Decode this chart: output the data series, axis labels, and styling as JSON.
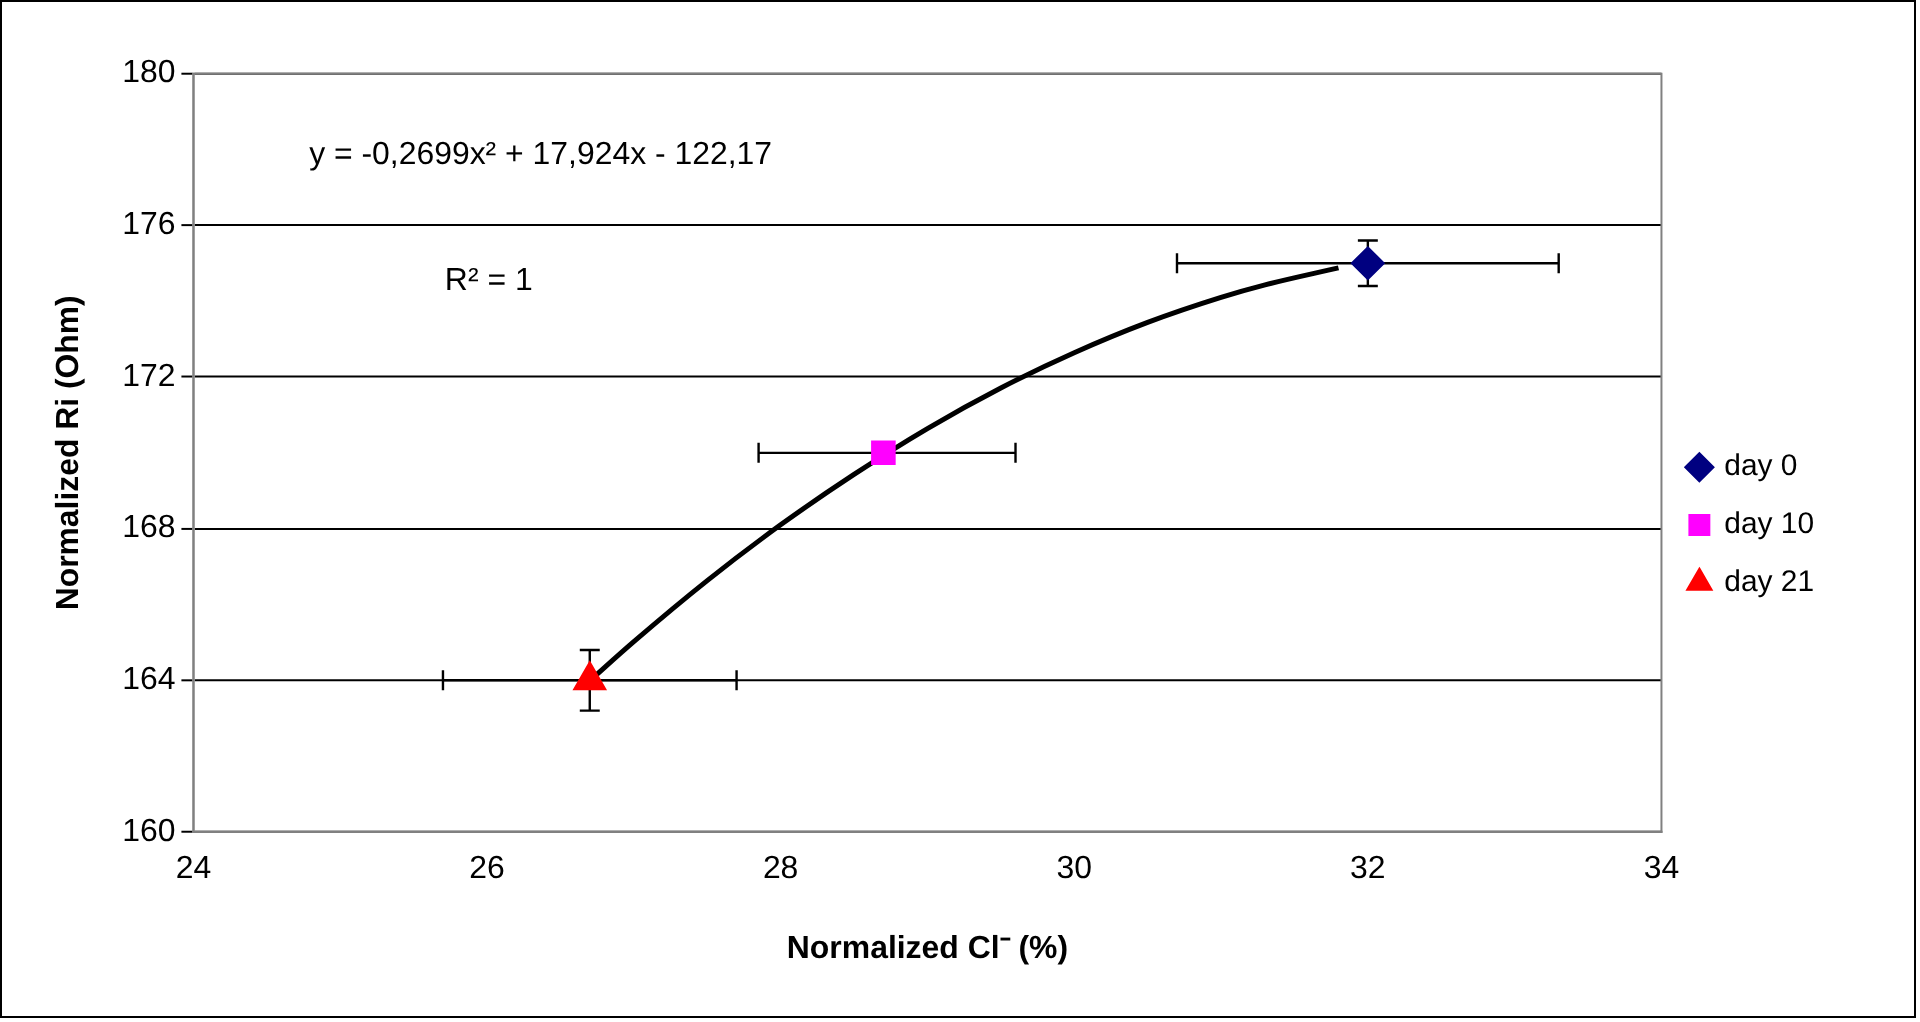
{
  "chart_data": {
    "type": "scatter",
    "xlabel": "Normalized Cl⁻ (%)",
    "ylabel": "Normalized Ri (Ohm)",
    "annotations": [
      "y = -0,2699x² + 17,924x - 122,17",
      "R² = 1"
    ],
    "xlim": [
      24,
      34
    ],
    "xticks": [
      24,
      26,
      28,
      30,
      32,
      34
    ],
    "ylim": [
      160,
      180
    ],
    "yticks": [
      160,
      164,
      168,
      172,
      176,
      180
    ],
    "grid": "y",
    "legend": "right",
    "series": [
      {
        "name": "day 0",
        "color": "#000080",
        "marker": "diamond",
        "x": [
          32
        ],
        "values": [
          175
        ],
        "xerrors": [
          1.3
        ],
        "errors": [
          0.6
        ]
      },
      {
        "name": "day 10",
        "color": "#ff00ff",
        "marker": "square",
        "x": [
          28.7
        ],
        "values": [
          170
        ],
        "xerrors": [
          [
            27.85,
            29.6
          ]
        ],
        "errors": [
          null
        ]
      },
      {
        "name": "day 21",
        "color": "#ff0000",
        "marker": "triangle",
        "x": [
          26.7
        ],
        "values": [
          164
        ],
        "xerrors": [
          1.0
        ],
        "errors": [
          0.8
        ]
      },
      {
        "type": "line",
        "color": "#000000",
        "marker": "none",
        "x": [
          26.7,
          27,
          27.5,
          28,
          28.5,
          29,
          29.5,
          30,
          30.5,
          31,
          31.3,
          31.8
        ],
        "values": [
          163.99,
          165.02,
          166.63,
          168.1,
          169.43,
          170.64,
          171.71,
          172.64,
          173.44,
          174.1,
          174.43,
          174.88
        ]
      }
    ]
  }
}
